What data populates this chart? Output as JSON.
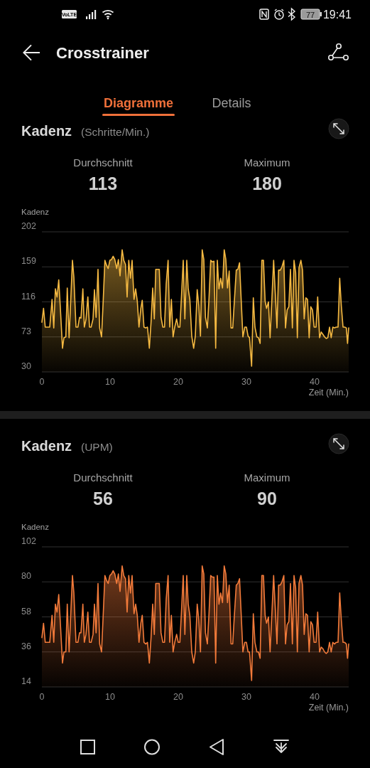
{
  "chart_data": [
    {
      "type": "area",
      "title": "Kadenz",
      "subtitle": "(Schritte/Min.)",
      "ylabel": "Kadenz",
      "xlabel": "Zeit (Min.)",
      "annotations": [
        "VoLTE",
        "77",
        "19:41",
        "Crosstrainer",
        "Diagramme",
        "Details",
        "Durchschnitt",
        "113",
        "Maximum",
        "180"
      ],
      "x": [
        0,
        0.24,
        0.49,
        1.15,
        1.49,
        1.74,
        1.98,
        2.22,
        2.47,
        2.71,
        3.02,
        3.23,
        3.51,
        3.72,
        3.99,
        4.48,
        4.69,
        5.0,
        5.28,
        5.52,
        5.73,
        6.01,
        6.22,
        6.46,
        6.74,
        6.98,
        7.22,
        7.5,
        7.71,
        7.95,
        8.23,
        8.47,
        8.75,
        8.99,
        9.24,
        9.48,
        9.72,
        9.97,
        10.21,
        10.45,
        10.69,
        10.97,
        11.22,
        11.46,
        11.77,
        12.01,
        12.26,
        12.5,
        12.74,
        12.99,
        13.23,
        13.51,
        13.75,
        13.99,
        14.24,
        14.51,
        14.72,
        14.97,
        15.24,
        15.49,
        15.76,
        16.01,
        16.25,
        16.49,
        16.7,
        17.22,
        17.47,
        17.74,
        17.99,
        18.23,
        18.51,
        18.75,
        18.99,
        19.24,
        19.48,
        19.76,
        20.0,
        20.24,
        20.49,
        20.73,
        20.97,
        21.25,
        21.46,
        21.7,
        21.98,
        22.26,
        22.5,
        22.78,
        23.02,
        23.26,
        23.51,
        23.75,
        23.99,
        24.27,
        24.51,
        24.76,
        25.0,
        25.24,
        25.49,
        25.73,
        25.97,
        26.22,
        26.49,
        26.74,
        26.98,
        27.22,
        27.47,
        27.74,
        27.99,
        28.23,
        28.51,
        28.75,
        28.99,
        29.24,
        29.48,
        29.76,
        30.0,
        30.24,
        30.45,
        30.76,
        31.01,
        31.25,
        31.53,
        31.77,
        32.01,
        32.26,
        32.5,
        32.74,
        32.95,
        33.23,
        33.47,
        33.72,
        33.99,
        34.24,
        34.48,
        34.72,
        34.97,
        35.21,
        35.49,
        35.73,
        35.97,
        36.22,
        36.46,
        36.74,
        36.98,
        37.22,
        37.47,
        37.71,
        37.99,
        38.23,
        38.47,
        38.72,
        38.96,
        39.2,
        39.44,
        39.69,
        39.93,
        40.21,
        40.45,
        40.73,
        40.97,
        41.22,
        41.46,
        41.7,
        41.94,
        42.19,
        42.43,
        42.67,
        42.92,
        43.16,
        43.44,
        43.68,
        43.92,
        44.17,
        44.41,
        44.65,
        44.83,
        45
      ],
      "series": [
        {
          "color": "#f5b942",
          "values": [
            91,
            108,
            85,
            85,
            119,
            84,
            132,
            122,
            143,
            108,
            59,
            72,
            73,
            133,
            72,
            167,
            146,
            85,
            85,
            97,
            96,
            132,
            85,
            94,
            122,
            85,
            85,
            95,
            131,
            97,
            156,
            84,
            73,
            117,
            167,
            161,
            157,
            167,
            168,
            172,
            168,
            157,
            168,
            148,
            180,
            167,
            162,
            122,
            167,
            145,
            167,
            119,
            132,
            117,
            85,
            108,
            118,
            85,
            84,
            85,
            59,
            91,
            133,
            95,
            156,
            156,
            97,
            85,
            85,
            138,
            167,
            85,
            119,
            73,
            85,
            95,
            85,
            85,
            126,
            167,
            95,
            167,
            132,
            119,
            74,
            59,
            74,
            131,
            111,
            74,
            180,
            168,
            97,
            84,
            120,
            167,
            165,
            166,
            59,
            167,
            132,
            145,
            133,
            180,
            168,
            133,
            154,
            84,
            84,
            117,
            155,
            156,
            164,
            117,
            73,
            85,
            85,
            74,
            72,
            37,
            121,
            85,
            73,
            72,
            65,
            167,
            167,
            117,
            108,
            116,
            72,
            117,
            167,
            126,
            84,
            155,
            155,
            159,
            167,
            84,
            106,
            110,
            156,
            84,
            167,
            152,
            72,
            158,
            167,
            155,
            95,
            121,
            119,
            72,
            110,
            106,
            85,
            85,
            122,
            72,
            79,
            76,
            73,
            71,
            72,
            85,
            72,
            85,
            84,
            85,
            85,
            145,
            111,
            85,
            85,
            84,
            65,
            84
          ]
        }
      ],
      "xlim": [
        0,
        45
      ],
      "xticks": [
        0,
        10,
        20,
        30,
        40
      ],
      "ylim": [
        30,
        202
      ],
      "yticks": [
        30,
        73,
        116,
        159,
        202
      ],
      "grid": "y"
    },
    {
      "type": "area",
      "title": "Kadenz",
      "subtitle": "(UPM)",
      "ylabel": "Kadenz",
      "xlabel": "Zeit (Min.)",
      "annotations": [
        "Durchschnitt",
        "56",
        "Maximum",
        "90"
      ],
      "x": [
        0,
        0.24,
        0.49,
        1.15,
        1.49,
        1.74,
        1.98,
        2.22,
        2.47,
        2.71,
        3.02,
        3.23,
        3.51,
        3.72,
        3.99,
        4.48,
        4.69,
        5.0,
        5.28,
        5.52,
        5.73,
        6.01,
        6.22,
        6.46,
        6.74,
        6.98,
        7.22,
        7.5,
        7.71,
        7.95,
        8.23,
        8.47,
        8.75,
        8.99,
        9.24,
        9.48,
        9.72,
        9.97,
        10.21,
        10.45,
        10.69,
        10.97,
        11.22,
        11.46,
        11.77,
        12.01,
        12.26,
        12.5,
        12.74,
        12.99,
        13.23,
        13.51,
        13.75,
        13.99,
        14.24,
        14.51,
        14.72,
        14.97,
        15.24,
        15.49,
        15.76,
        16.01,
        16.25,
        16.49,
        16.7,
        17.22,
        17.47,
        17.74,
        17.99,
        18.23,
        18.51,
        18.75,
        18.99,
        19.24,
        19.48,
        19.76,
        20.0,
        20.24,
        20.49,
        20.73,
        20.97,
        21.25,
        21.46,
        21.7,
        21.98,
        22.26,
        22.5,
        22.78,
        23.02,
        23.26,
        23.51,
        23.75,
        23.99,
        24.27,
        24.51,
        24.76,
        25.0,
        25.24,
        25.49,
        25.73,
        25.97,
        26.22,
        26.49,
        26.74,
        26.98,
        27.22,
        27.47,
        27.74,
        27.99,
        28.23,
        28.51,
        28.75,
        28.99,
        29.24,
        29.48,
        29.76,
        30.0,
        30.24,
        30.45,
        30.76,
        31.01,
        31.25,
        31.53,
        31.77,
        32.01,
        32.26,
        32.5,
        32.74,
        32.95,
        33.23,
        33.47,
        33.72,
        33.99,
        34.24,
        34.48,
        34.72,
        34.97,
        35.21,
        35.49,
        35.73,
        35.97,
        36.22,
        36.46,
        36.74,
        36.98,
        37.22,
        37.47,
        37.71,
        37.99,
        38.23,
        38.47,
        38.72,
        38.96,
        39.2,
        39.44,
        39.69,
        39.93,
        40.21,
        40.45,
        40.73,
        40.97,
        41.22,
        41.46,
        41.7,
        41.94,
        42.19,
        42.43,
        42.67,
        42.92,
        43.16,
        43.44,
        43.68,
        43.92,
        44.17,
        44.41,
        44.65,
        44.83,
        45
      ],
      "series": [
        {
          "color": "#f27a3a",
          "values": [
            45,
            54,
            42,
            42,
            59,
            42,
            66,
            61,
            72,
            54,
            29,
            36,
            36,
            66,
            36,
            84,
            73,
            42,
            42,
            48,
            48,
            66,
            42,
            47,
            61,
            42,
            42,
            47,
            66,
            48,
            79,
            41,
            36,
            59,
            84,
            81,
            79,
            84,
            85,
            87,
            85,
            79,
            85,
            74,
            90,
            84,
            82,
            61,
            84,
            73,
            84,
            60,
            66,
            59,
            42,
            54,
            59,
            42,
            41,
            42,
            29,
            45,
            66,
            47,
            79,
            79,
            48,
            42,
            42,
            69,
            84,
            42,
            59,
            36,
            42,
            47,
            42,
            42,
            63,
            84,
            47,
            84,
            66,
            59,
            36,
            29,
            36,
            66,
            56,
            36,
            90,
            85,
            48,
            41,
            60,
            84,
            83,
            83,
            29,
            84,
            66,
            73,
            67,
            90,
            85,
            67,
            78,
            41,
            41,
            59,
            78,
            79,
            82,
            59,
            36,
            42,
            42,
            36,
            36,
            18,
            60,
            42,
            36,
            36,
            32,
            84,
            84,
            59,
            54,
            58,
            36,
            59,
            84,
            63,
            41,
            78,
            78,
            80,
            84,
            41,
            53,
            55,
            79,
            41,
            84,
            76,
            36,
            79,
            84,
            78,
            47,
            60,
            59,
            36,
            55,
            53,
            42,
            42,
            61,
            36,
            39,
            38,
            36,
            35,
            36,
            42,
            36,
            42,
            41,
            42,
            42,
            73,
            56,
            42,
            42,
            41,
            32,
            41
          ]
        }
      ],
      "xlim": [
        0,
        45
      ],
      "xticks": [
        0,
        10,
        20,
        30,
        40
      ],
      "ylim": [
        14,
        102
      ],
      "yticks": [
        14,
        36,
        58,
        80,
        102
      ],
      "grid": "y"
    }
  ]
}
